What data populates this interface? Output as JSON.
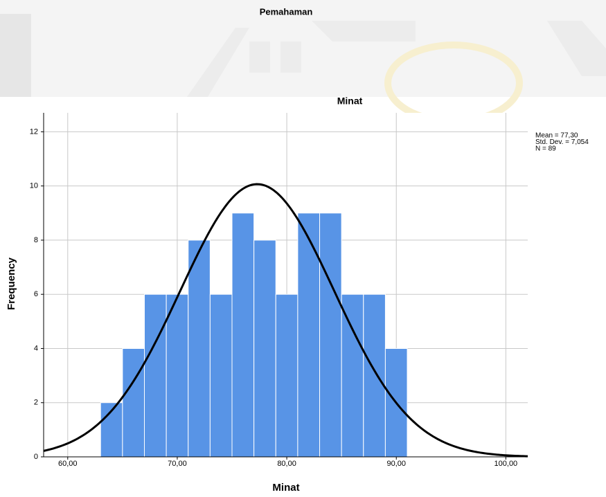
{
  "previous_title": "Pemahaman",
  "chart_data": {
    "type": "histogram",
    "title": "Minat",
    "x_label": "Minat",
    "y_label": "Frequency",
    "bins": [
      63,
      65,
      67,
      69,
      71,
      73,
      75,
      77,
      79,
      81,
      83,
      85,
      87,
      89,
      91
    ],
    "counts": [
      2,
      4,
      6,
      6,
      8,
      6,
      9,
      8,
      6,
      9,
      9,
      6,
      6,
      4
    ],
    "color": "#5894e6",
    "curve": {
      "mean": 77.3,
      "sd": 7.054,
      "n": 89,
      "color": "#000000"
    },
    "stats_text": [
      "Mean = 77,30",
      "Std. Dev. = 7,054",
      "N = 89"
    ],
    "xlim": [
      57.8,
      102
    ],
    "ylim": [
      0,
      12.7
    ],
    "xticks": [
      {
        "value": 60,
        "label": "60,00"
      },
      {
        "value": 70,
        "label": "70,00"
      },
      {
        "value": 80,
        "label": "80,00"
      },
      {
        "value": 90,
        "label": "90,00"
      },
      {
        "value": 100,
        "label": "100,00"
      }
    ],
    "yticks": [
      0,
      2,
      4,
      6,
      8,
      10,
      12
    ],
    "grid": true
  }
}
